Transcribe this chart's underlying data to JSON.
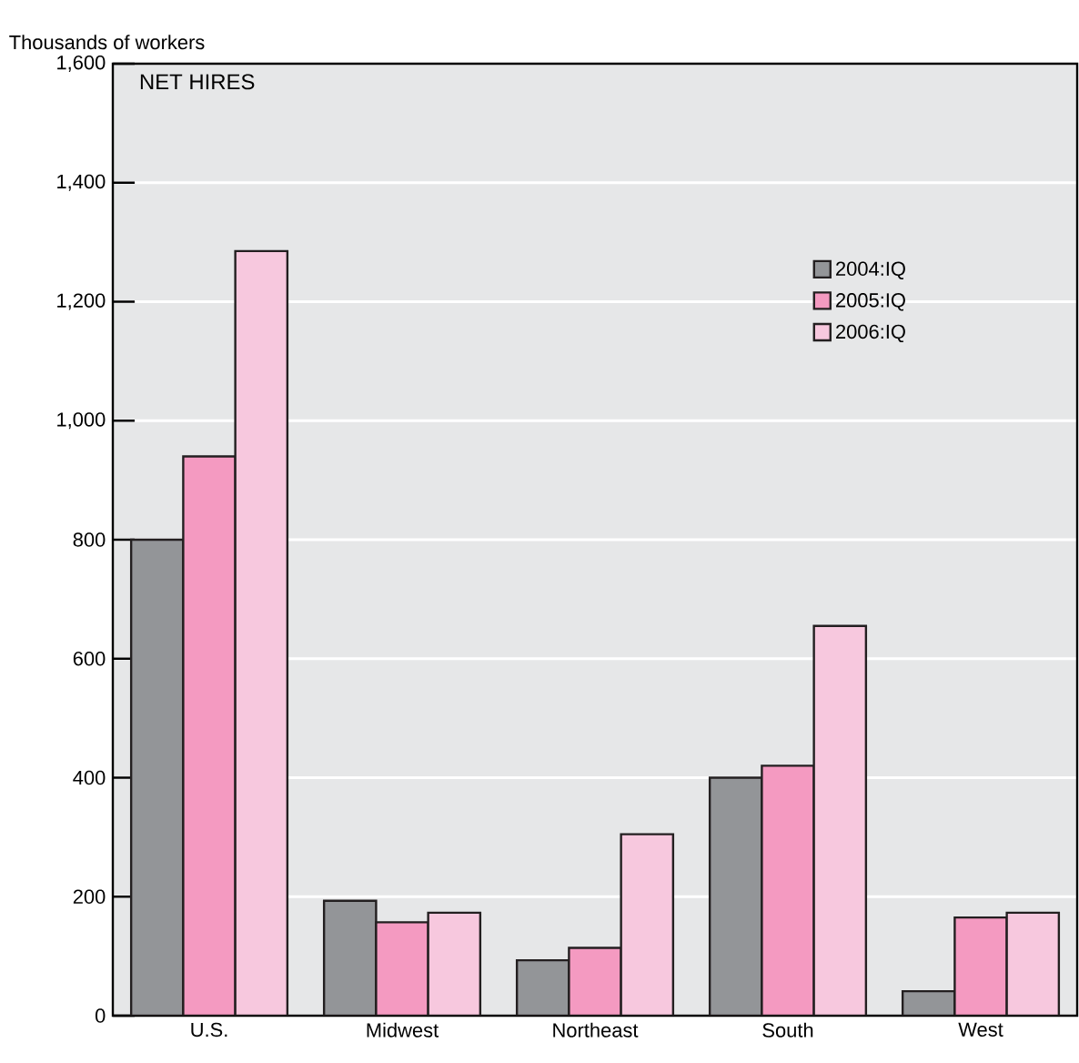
{
  "chart_data": {
    "type": "bar",
    "title": "NET HIRES",
    "ylabel": "Thousands of workers",
    "categories": [
      "U.S.",
      "Midwest",
      "Northeast",
      "South",
      "West"
    ],
    "series": [
      {
        "name": "2004:IQ",
        "color": "#939598",
        "values": [
          800,
          193,
          93,
          400,
          41
        ]
      },
      {
        "name": "2005:IQ",
        "color": "#f49ac1",
        "values": [
          940,
          157,
          114,
          420,
          165
        ]
      },
      {
        "name": "2006:IQ",
        "color": "#f7c8de",
        "values": [
          1285,
          173,
          305,
          655,
          173
        ]
      }
    ],
    "ylim": [
      0,
      1600
    ],
    "yticks": [
      {
        "value": 0,
        "label": "0"
      },
      {
        "value": 200,
        "label": "200"
      },
      {
        "value": 400,
        "label": "400"
      },
      {
        "value": 600,
        "label": "600"
      },
      {
        "value": 800,
        "label": "800"
      },
      {
        "value": 1000,
        "label": "1,000"
      },
      {
        "value": 1200,
        "label": "1,200"
      },
      {
        "value": 1400,
        "label": "1,400"
      },
      {
        "value": 1600,
        "label": "1,600"
      }
    ],
    "grid": "y",
    "legend": "right"
  }
}
